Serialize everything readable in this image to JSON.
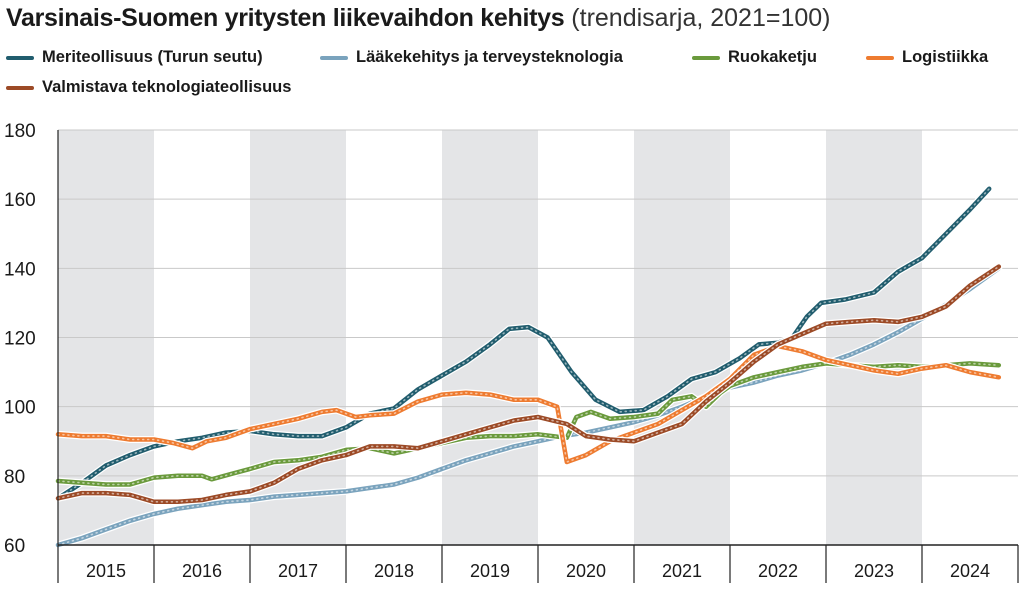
{
  "title": {
    "main": "Varsinais-Suomen yritysten liikevaihdon kehitys",
    "sub": "(trendisarja, 2021=100)"
  },
  "chart_data": {
    "type": "line",
    "title": "Varsinais-Suomen yritysten liikevaihdon kehitys (trendisarja, 2021=100)",
    "xlabel": "",
    "ylabel": "",
    "ylim": [
      60,
      180
    ],
    "yticks": [
      60,
      80,
      100,
      120,
      140,
      160,
      180
    ],
    "xlim": [
      2015,
      2025
    ],
    "categories": [
      "2015",
      "2016",
      "2017",
      "2018",
      "2019",
      "2020",
      "2021",
      "2022",
      "2023",
      "2024"
    ],
    "shaded_years": [
      "2015",
      "2017",
      "2019",
      "2021",
      "2023"
    ],
    "grid": true,
    "legend_position": "top",
    "series": [
      {
        "name": "Meriteollisuus (Turun seutu)",
        "color": "#215d6e",
        "points": [
          [
            2015.0,
            73.5
          ],
          [
            2015.25,
            78
          ],
          [
            2015.5,
            83
          ],
          [
            2015.75,
            86
          ],
          [
            2016.0,
            88.5
          ],
          [
            2016.25,
            90
          ],
          [
            2016.5,
            91
          ],
          [
            2016.75,
            92.5
          ],
          [
            2017.0,
            93
          ],
          [
            2017.25,
            92
          ],
          [
            2017.5,
            91.5
          ],
          [
            2017.75,
            91.5
          ],
          [
            2018.0,
            94
          ],
          [
            2018.25,
            98
          ],
          [
            2018.5,
            99.5
          ],
          [
            2018.75,
            105
          ],
          [
            2019.0,
            109
          ],
          [
            2019.25,
            113
          ],
          [
            2019.5,
            118
          ],
          [
            2019.7,
            122.5
          ],
          [
            2019.9,
            123
          ],
          [
            2020.1,
            120
          ],
          [
            2020.35,
            110
          ],
          [
            2020.6,
            102
          ],
          [
            2020.85,
            98.5
          ],
          [
            2021.1,
            99
          ],
          [
            2021.35,
            103
          ],
          [
            2021.6,
            108
          ],
          [
            2021.85,
            110
          ],
          [
            2022.1,
            114
          ],
          [
            2022.3,
            118
          ],
          [
            2022.5,
            118.5
          ],
          [
            2022.65,
            120
          ],
          [
            2022.8,
            126
          ],
          [
            2022.95,
            130
          ],
          [
            2023.2,
            131
          ],
          [
            2023.5,
            133
          ],
          [
            2023.75,
            139
          ],
          [
            2024.0,
            143
          ],
          [
            2024.25,
            150
          ],
          [
            2024.5,
            157
          ],
          [
            2024.7,
            163
          ]
        ]
      },
      {
        "name": "Lääkekehitys ja terveysteknologia",
        "color": "#7aa3bd",
        "points": [
          [
            2015.0,
            60
          ],
          [
            2015.25,
            62
          ],
          [
            2015.5,
            64.5
          ],
          [
            2015.75,
            67
          ],
          [
            2016.0,
            69
          ],
          [
            2016.25,
            70.5
          ],
          [
            2016.5,
            71.5
          ],
          [
            2016.75,
            72.5
          ],
          [
            2017.0,
            73
          ],
          [
            2017.25,
            74
          ],
          [
            2017.5,
            74.5
          ],
          [
            2017.75,
            75
          ],
          [
            2018.0,
            75.5
          ],
          [
            2018.25,
            76.5
          ],
          [
            2018.5,
            77.5
          ],
          [
            2018.75,
            79.5
          ],
          [
            2019.0,
            82
          ],
          [
            2019.25,
            84.5
          ],
          [
            2019.5,
            86.5
          ],
          [
            2019.75,
            88.5
          ],
          [
            2020.0,
            90
          ],
          [
            2020.25,
            91.5
          ],
          [
            2020.5,
            92.5
          ],
          [
            2020.75,
            94
          ],
          [
            2021.0,
            95.5
          ],
          [
            2021.25,
            97.5
          ],
          [
            2021.5,
            100
          ],
          [
            2021.75,
            103
          ],
          [
            2022.0,
            105.5
          ],
          [
            2022.25,
            107
          ],
          [
            2022.5,
            109
          ],
          [
            2022.75,
            110.5
          ],
          [
            2023.0,
            112.5
          ],
          [
            2023.25,
            115
          ],
          [
            2023.5,
            118
          ],
          [
            2023.75,
            121.5
          ],
          [
            2024.0,
            125.5
          ],
          [
            2024.25,
            129.5
          ],
          [
            2024.5,
            134
          ],
          [
            2024.8,
            140
          ]
        ]
      },
      {
        "name": "Ruokaketju",
        "color": "#6a9a3c",
        "points": [
          [
            2015.0,
            78.5
          ],
          [
            2015.25,
            78
          ],
          [
            2015.5,
            77.5
          ],
          [
            2015.75,
            77.5
          ],
          [
            2016.0,
            79.5
          ],
          [
            2016.25,
            80
          ],
          [
            2016.5,
            80
          ],
          [
            2016.6,
            79
          ],
          [
            2016.8,
            80.5
          ],
          [
            2017.0,
            82
          ],
          [
            2017.25,
            84
          ],
          [
            2017.5,
            84.5
          ],
          [
            2017.75,
            85.5
          ],
          [
            2018.0,
            87.5
          ],
          [
            2018.25,
            88
          ],
          [
            2018.5,
            86.5
          ],
          [
            2018.75,
            88
          ],
          [
            2019.0,
            89.5
          ],
          [
            2019.25,
            91
          ],
          [
            2019.5,
            91.5
          ],
          [
            2019.75,
            91.5
          ],
          [
            2020.0,
            92
          ],
          [
            2020.3,
            91
          ],
          [
            2020.4,
            97
          ],
          [
            2020.55,
            98.5
          ],
          [
            2020.75,
            96.5
          ],
          [
            2021.0,
            97
          ],
          [
            2021.25,
            98
          ],
          [
            2021.4,
            102
          ],
          [
            2021.6,
            103
          ],
          [
            2021.75,
            100
          ],
          [
            2021.9,
            104
          ],
          [
            2022.0,
            106
          ],
          [
            2022.25,
            108.5
          ],
          [
            2022.5,
            110
          ],
          [
            2022.75,
            111.5
          ],
          [
            2023.0,
            112.5
          ],
          [
            2023.25,
            112
          ],
          [
            2023.5,
            111.5
          ],
          [
            2023.75,
            112
          ],
          [
            2024.0,
            111.5
          ],
          [
            2024.25,
            112
          ],
          [
            2024.5,
            112.5
          ],
          [
            2024.8,
            112
          ]
        ]
      },
      {
        "name": "Logistiikka",
        "color": "#ee7b30",
        "points": [
          [
            2015.0,
            92
          ],
          [
            2015.25,
            91.5
          ],
          [
            2015.5,
            91.5
          ],
          [
            2015.75,
            90.5
          ],
          [
            2016.0,
            90.5
          ],
          [
            2016.2,
            89.5
          ],
          [
            2016.4,
            88
          ],
          [
            2016.55,
            90
          ],
          [
            2016.75,
            91
          ],
          [
            2017.0,
            93.5
          ],
          [
            2017.25,
            95
          ],
          [
            2017.5,
            96.5
          ],
          [
            2017.75,
            98.5
          ],
          [
            2017.9,
            99
          ],
          [
            2018.1,
            97
          ],
          [
            2018.25,
            97.5
          ],
          [
            2018.5,
            98
          ],
          [
            2018.75,
            101.5
          ],
          [
            2019.0,
            103.5
          ],
          [
            2019.25,
            104
          ],
          [
            2019.5,
            103.5
          ],
          [
            2019.75,
            102
          ],
          [
            2020.0,
            102
          ],
          [
            2020.2,
            100
          ],
          [
            2020.3,
            84
          ],
          [
            2020.5,
            86
          ],
          [
            2020.75,
            90
          ],
          [
            2021.0,
            92.5
          ],
          [
            2021.25,
            95
          ],
          [
            2021.5,
            99
          ],
          [
            2021.75,
            103
          ],
          [
            2022.0,
            108
          ],
          [
            2022.25,
            115
          ],
          [
            2022.5,
            117.5
          ],
          [
            2022.75,
            116
          ],
          [
            2023.0,
            113.5
          ],
          [
            2023.25,
            112
          ],
          [
            2023.5,
            110.5
          ],
          [
            2023.75,
            109.5
          ],
          [
            2024.0,
            111
          ],
          [
            2024.25,
            112
          ],
          [
            2024.5,
            110
          ],
          [
            2024.8,
            108.5
          ]
        ]
      },
      {
        "name": "Valmistava teknologiateollisuus",
        "color": "#9c4a26",
        "points": [
          [
            2015.0,
            73.5
          ],
          [
            2015.25,
            75
          ],
          [
            2015.5,
            75
          ],
          [
            2015.75,
            74.5
          ],
          [
            2016.0,
            72.5
          ],
          [
            2016.25,
            72.5
          ],
          [
            2016.5,
            73
          ],
          [
            2016.75,
            74.5
          ],
          [
            2017.0,
            75.5
          ],
          [
            2017.25,
            78
          ],
          [
            2017.5,
            82
          ],
          [
            2017.75,
            84.5
          ],
          [
            2018.0,
            86
          ],
          [
            2018.25,
            88.5
          ],
          [
            2018.5,
            88.5
          ],
          [
            2018.75,
            88
          ],
          [
            2019.0,
            90
          ],
          [
            2019.25,
            92
          ],
          [
            2019.5,
            94
          ],
          [
            2019.75,
            96
          ],
          [
            2020.0,
            97
          ],
          [
            2020.3,
            95
          ],
          [
            2020.5,
            91.5
          ],
          [
            2020.75,
            90.5
          ],
          [
            2021.0,
            90
          ],
          [
            2021.25,
            92.5
          ],
          [
            2021.5,
            95
          ],
          [
            2021.75,
            101.5
          ],
          [
            2022.0,
            107
          ],
          [
            2022.25,
            113
          ],
          [
            2022.5,
            118
          ],
          [
            2022.75,
            121
          ],
          [
            2023.0,
            124
          ],
          [
            2023.25,
            124.5
          ],
          [
            2023.5,
            125
          ],
          [
            2023.75,
            124.5
          ],
          [
            2024.0,
            126
          ],
          [
            2024.25,
            129
          ],
          [
            2024.5,
            135
          ],
          [
            2024.8,
            140.5
          ]
        ]
      }
    ]
  }
}
